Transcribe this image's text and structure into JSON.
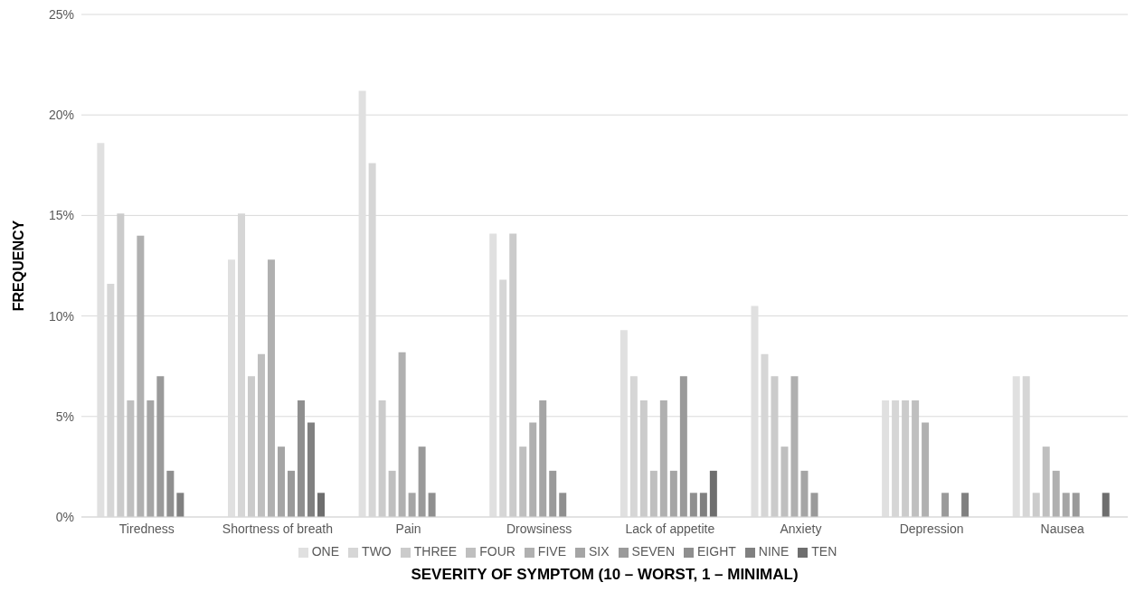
{
  "chart_data": {
    "type": "bar",
    "xlabel": "SEVERITY OF SYMPTOM (10 – WORST, 1 – MINIMAL)",
    "ylabel": "FREQUENCY",
    "categories": [
      "Tiredness",
      "Shortness of breath",
      "Pain",
      "Drowsiness",
      "Lack of appetite",
      "Anxiety",
      "Depression",
      "Nausea"
    ],
    "series": [
      {
        "name": "ONE",
        "color": "#e0e0e0",
        "values": [
          18.6,
          12.8,
          21.2,
          14.1,
          9.3,
          10.5,
          5.8,
          7.0
        ]
      },
      {
        "name": "TWO",
        "color": "#d6d6d6",
        "values": [
          11.6,
          15.1,
          17.6,
          11.8,
          7.0,
          8.1,
          5.8,
          7.0
        ]
      },
      {
        "name": "THREE",
        "color": "#cbcbcb",
        "values": [
          15.1,
          7.0,
          5.8,
          14.1,
          5.8,
          7.0,
          5.8,
          1.2
        ]
      },
      {
        "name": "FOUR",
        "color": "#bfbfbf",
        "values": [
          5.8,
          8.1,
          2.3,
          3.5,
          2.3,
          3.5,
          5.8,
          3.5
        ]
      },
      {
        "name": "FIVE",
        "color": "#b0b0b0",
        "values": [
          14.0,
          12.8,
          8.2,
          4.7,
          5.8,
          7.0,
          4.7,
          2.3
        ]
      },
      {
        "name": "SIX",
        "color": "#a5a5a5",
        "values": [
          5.8,
          3.5,
          1.2,
          5.8,
          2.3,
          2.3,
          0,
          1.2
        ]
      },
      {
        "name": "SEVEN",
        "color": "#9a9a9a",
        "values": [
          7.0,
          2.3,
          3.5,
          2.3,
          7.0,
          1.2,
          1.2,
          1.2
        ]
      },
      {
        "name": "EIGHT",
        "color": "#8f8f8f",
        "values": [
          2.3,
          5.8,
          1.2,
          1.2,
          1.2,
          0,
          0,
          0
        ]
      },
      {
        "name": "NINE",
        "color": "#808080",
        "values": [
          1.2,
          4.7,
          0,
          0,
          1.2,
          0,
          1.2,
          0
        ]
      },
      {
        "name": "TEN",
        "color": "#6e6e6e",
        "values": [
          0,
          1.2,
          0,
          0,
          2.3,
          0,
          0,
          1.2
        ]
      }
    ],
    "ylim": [
      0,
      25
    ],
    "yticks": [
      {
        "value": 0,
        "label": "0%"
      },
      {
        "value": 5,
        "label": "5%"
      },
      {
        "value": 10,
        "label": "10%"
      },
      {
        "value": 15,
        "label": "15%"
      },
      {
        "value": 20,
        "label": "20%"
      },
      {
        "value": 25,
        "label": "25%"
      }
    ],
    "grid": "y",
    "legend": "bottom"
  }
}
